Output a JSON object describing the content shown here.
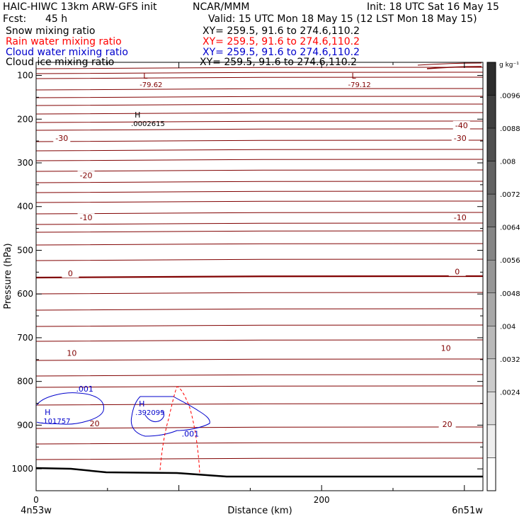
{
  "header": {
    "title": "HAIC-HIWC 13km ARW-GFS init",
    "org": "NCAR/MMM",
    "init": "Init: 18 UTC Sat 16 May 15",
    "fcst_label": "Fcst:",
    "fcst_value": "45 h",
    "valid": "Valid: 15 UTC Mon 18 May 15 (12 LST Mon 18 May 15)"
  },
  "fields": [
    {
      "name": "Snow mixing ratio",
      "xy": "XY= 259.5, 91.6 to 274.6,110.2",
      "color": "#000000"
    },
    {
      "name": "Rain water mixing ratio",
      "xy": "XY= 259.5, 91.6 to 274.6,110.2",
      "color": "#ff0000"
    },
    {
      "name": "Cloud water mixing ratio",
      "xy": "XY= 259.5, 91.6 to 274.6,110.2",
      "color": "#0000cc"
    },
    {
      "name": "Cloud ice mixing ratio",
      "xy": "XY= 259.5, 91.6 to 274.6,110.2",
      "color": "#000000"
    }
  ],
  "colorbar": {
    "unit": "g kg⁻¹",
    "labels": [
      ".0096",
      ".0088",
      ".008",
      ".0072",
      ".0064",
      ".0056",
      ".0048",
      ".004",
      ".0032",
      ".0024"
    ]
  },
  "chart_data": {
    "type": "contour",
    "xlabel": "Distance (km)",
    "ylabel": "Pressure (hPa)",
    "xlim": [
      0,
      313
    ],
    "ylim": [
      1050,
      70
    ],
    "x_ticks": [
      0,
      200
    ],
    "y_ticks": [
      100,
      200,
      300,
      400,
      500,
      600,
      700,
      800,
      900,
      1000
    ],
    "x_endpoint_labels": [
      "4n53w",
      "6n51w"
    ],
    "temperature_labels": [
      {
        "text": "-40",
        "x": 298,
        "p": 214
      },
      {
        "text": "-30",
        "x": 18,
        "p": 243
      },
      {
        "text": "-30",
        "x": 297,
        "p": 243
      },
      {
        "text": "-20",
        "x": 35,
        "p": 328
      },
      {
        "text": "-10",
        "x": 35,
        "p": 425
      },
      {
        "text": "-10",
        "x": 297,
        "p": 425
      },
      {
        "text": "0",
        "x": 24,
        "p": 553
      },
      {
        "text": "0",
        "x": 295,
        "p": 549
      },
      {
        "text": "10",
        "x": 25,
        "p": 735
      },
      {
        "text": "10",
        "x": 287,
        "p": 724
      },
      {
        "text": "20",
        "x": 41,
        "p": 896
      },
      {
        "text": "20",
        "x": 288,
        "p": 898
      }
    ],
    "extrema": [
      {
        "kind": "L",
        "value": "-79.62",
        "x": 75,
        "p": 117,
        "color": "#800000"
      },
      {
        "kind": "L",
        "value": "-79.12",
        "x": 221,
        "p": 117,
        "color": "#800000"
      },
      {
        "kind": "H",
        "value": ".0002615",
        "x": 69,
        "p": 206,
        "color": "#000000"
      },
      {
        "kind": "H",
        "value": ".101757",
        "x": 6,
        "p": 886,
        "color": "#0000cc"
      },
      {
        "kind": "H",
        "value": ".392099",
        "x": 72,
        "p": 867,
        "color": "#0000cc"
      }
    ],
    "cloud_water_labels": [
      {
        "text": ".001",
        "x": 28,
        "p": 817
      },
      {
        "text": ".001",
        "x": 102,
        "p": 920
      }
    ],
    "terrain_surface_hpa": 1003
  }
}
